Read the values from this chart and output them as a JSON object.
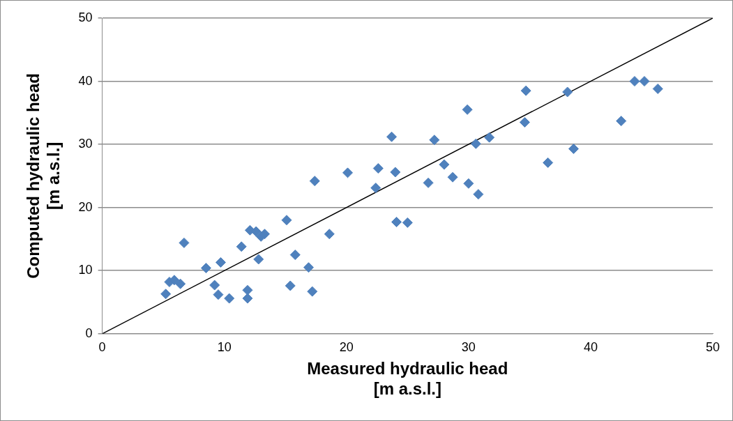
{
  "chart_data": {
    "type": "scatter",
    "xlabel": "Measured hydraulic head\n[m a.s.l.]",
    "ylabel": "Computed hydraulic head\n[m a.s.l.]",
    "xlim": [
      0,
      50
    ],
    "ylim": [
      0,
      50
    ],
    "xticks": [
      0,
      10,
      20,
      30,
      40,
      50
    ],
    "yticks": [
      0,
      10,
      20,
      30,
      40,
      50
    ],
    "grid": "y",
    "legend": false,
    "marker": "diamond",
    "series": [
      {
        "type": "scatter",
        "color": "#4f81bd",
        "x": [
          5.2,
          5.5,
          5.9,
          6.4,
          6.7,
          8.5,
          9.2,
          9.5,
          9.7,
          10.4,
          11.4,
          11.9,
          11.9,
          12.1,
          12.6,
          12.8,
          13.0,
          13.3,
          15.1,
          15.4,
          15.8,
          16.9,
          17.2,
          17.4,
          18.6,
          20.1,
          22.4,
          22.6,
          23.7,
          24.0,
          24.1,
          25.0,
          26.7,
          27.2,
          28.0,
          28.7,
          29.9,
          30.0,
          30.6,
          30.8,
          31.7,
          34.7,
          34.6,
          36.5,
          38.1,
          38.6,
          42.5,
          43.6,
          44.4,
          45.5
        ],
        "values": [
          6.3,
          8.2,
          8.5,
          7.9,
          14.4,
          10.4,
          7.7,
          6.2,
          11.3,
          5.6,
          13.8,
          5.6,
          6.9,
          16.4,
          16.2,
          11.8,
          15.4,
          15.8,
          18.0,
          7.6,
          12.5,
          10.5,
          6.7,
          24.2,
          15.8,
          25.5,
          23.1,
          26.2,
          31.2,
          25.6,
          17.7,
          17.6,
          23.9,
          30.7,
          26.8,
          24.8,
          35.5,
          23.8,
          30.1,
          22.1,
          31.1,
          38.5,
          33.5,
          27.1,
          38.3,
          29.3,
          33.7,
          40.0,
          40.0,
          38.8
        ]
      },
      {
        "type": "line",
        "color": "#000000",
        "marker": "none",
        "x": [
          0,
          50
        ],
        "values": [
          0,
          50
        ]
      }
    ]
  }
}
